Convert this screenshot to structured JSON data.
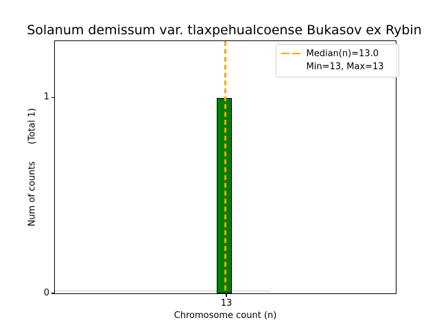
{
  "figure": {
    "title": "Solanum demissum var. tlaxpehualcoense Bukasov ex Rybin",
    "xlabel": "Chromosome count (n)",
    "ylabel": "Num of counts      (Total 1)",
    "x_tick": "13",
    "y_ticks": [
      "0",
      "1"
    ],
    "legend": {
      "median_label": "Median(n)=13.0",
      "minmax_label": "Min=13, Max=13"
    },
    "colors": {
      "bar_fill": "#008000",
      "bar_edge": "#000000",
      "median_line": "#FFA500",
      "legend_border": "#cccccc",
      "spine": "#000000"
    }
  },
  "chart_data": {
    "type": "bar",
    "title": "Solanum demissum var. tlaxpehualcoense Bukasov ex Rybin",
    "xlabel": "Chromosome count (n)",
    "ylabel": "Num of counts (Total 1)",
    "categories": [
      13
    ],
    "values": [
      1
    ],
    "total_counts": 1,
    "median_n": 13.0,
    "min_n": 13,
    "max_n": 13,
    "x_tick_labels": [
      "13"
    ],
    "y_tick_labels": [
      "0",
      "1"
    ],
    "ylim": [
      0,
      1.29
    ],
    "bar_width_units": 1,
    "grid": false,
    "legend_position": "upper right",
    "legend_entries": [
      "Median(n)=13.0",
      "Min=13, Max=13"
    ],
    "bar_color": "#008000",
    "median_line_color": "#FFA500",
    "median_line_style": "dashed"
  }
}
